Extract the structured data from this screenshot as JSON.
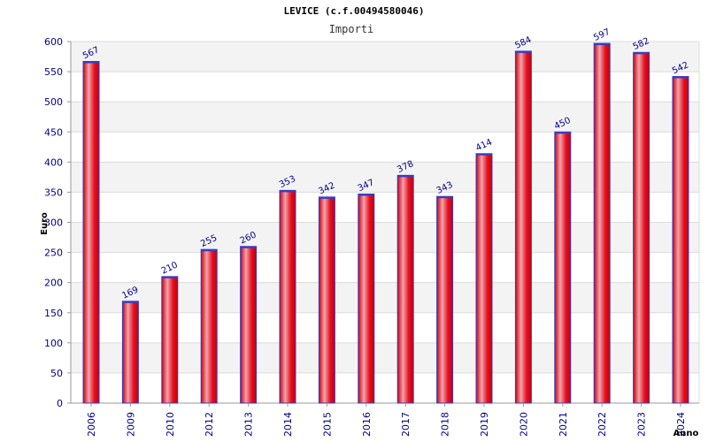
{
  "chart_data": {
    "type": "bar",
    "title": "LEVICE (c.f.00494580046)",
    "subtitle": "Importi",
    "xlabel": "Anno",
    "ylabel": "Euro",
    "categories": [
      "2006",
      "2009",
      "2010",
      "2012",
      "2013",
      "2014",
      "2015",
      "2016",
      "2017",
      "2018",
      "2019",
      "2020",
      "2021",
      "2022",
      "2023",
      "2024"
    ],
    "values": [
      567,
      169,
      210,
      255,
      260,
      353,
      342,
      347,
      378,
      343,
      414,
      584,
      450,
      597,
      582,
      542
    ],
    "ylim": [
      0,
      600
    ],
    "yticks": [
      0,
      50,
      100,
      150,
      200,
      250,
      300,
      350,
      400,
      450,
      500,
      550,
      600
    ],
    "grid": true,
    "colors": {
      "bar": "#e8101e",
      "bar_highlight": "#f0a0a8",
      "bar_edge": "#3b3bbf",
      "band": "#f3f3f3",
      "tick_text": "#00008b"
    }
  }
}
